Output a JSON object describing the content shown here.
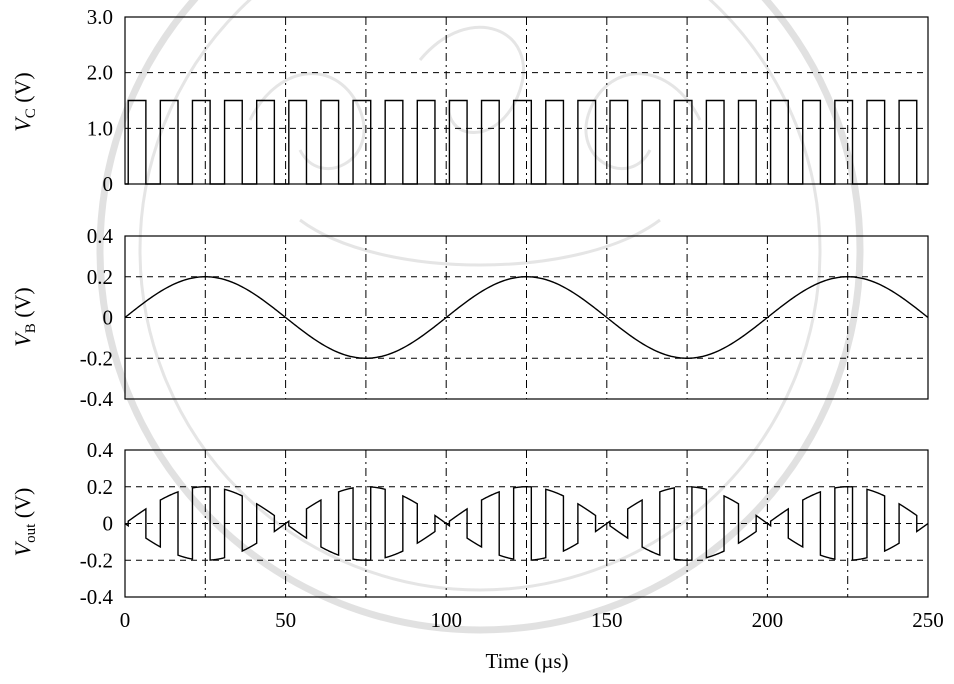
{
  "chart_data": [
    {
      "type": "line",
      "panel": "top",
      "ylabel_main": "V",
      "ylabel_sub": "C",
      "ylabel_unit": " (V)",
      "xlim": [
        0,
        250
      ],
      "ylim": [
        0,
        3.0
      ],
      "yticks": [
        0,
        1.0,
        2.0,
        3.0
      ],
      "ytick_labels": [
        "0",
        "1.0",
        "2.0",
        "3.0"
      ],
      "grid": true,
      "signal": {
        "kind": "square_wave",
        "amplitude": 1.5,
        "period_us": 10,
        "high_from_us": 1.0,
        "high_to_us": 6.5,
        "cycles": 25
      }
    },
    {
      "type": "line",
      "panel": "middle",
      "ylabel_main": "V",
      "ylabel_sub": "B",
      "ylabel_unit": " (V)",
      "xlim": [
        0,
        250
      ],
      "ylim": [
        -0.4,
        0.4
      ],
      "yticks": [
        -0.4,
        -0.2,
        0,
        0.2,
        0.4
      ],
      "ytick_labels": [
        "-0.4",
        "-0.2",
        "0",
        "0.2",
        "0.4"
      ],
      "grid": true,
      "signal": {
        "kind": "sine",
        "amplitude": 0.2,
        "period_us": 100
      }
    },
    {
      "type": "line",
      "panel": "bottom",
      "ylabel_main": "V",
      "ylabel_sub": "out",
      "ylabel_unit": " (V)",
      "xlim": [
        0,
        250
      ],
      "ylim": [
        -0.4,
        0.4
      ],
      "yticks": [
        -0.4,
        -0.2,
        0,
        0.2,
        0.4
      ],
      "ytick_labels": [
        "-0.4",
        "-0.2",
        "0",
        "0.2",
        "0.4"
      ],
      "xticks": [
        0,
        50,
        100,
        150,
        200,
        250
      ],
      "xtick_labels": [
        "0",
        "50",
        "100",
        "150",
        "200",
        "250"
      ],
      "grid": true,
      "signal": {
        "kind": "chopped_sine",
        "amplitude": 0.2,
        "period_us": 100,
        "chop_period_us": 10,
        "chop_high_from_us": 1.0,
        "chop_high_to_us": 6.5
      }
    }
  ],
  "xlabel": "Time (µs)"
}
